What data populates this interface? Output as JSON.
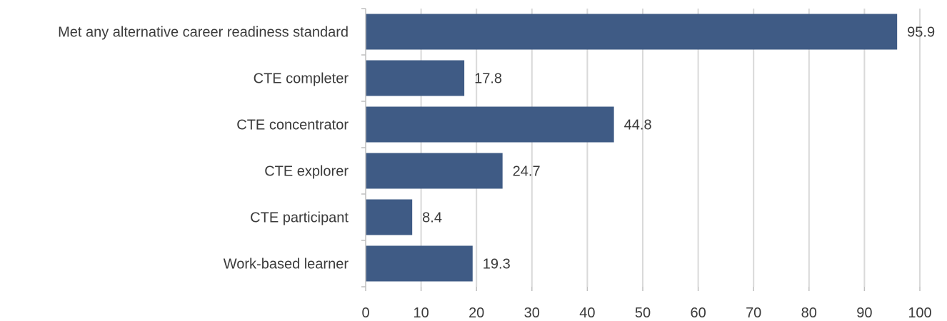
{
  "chart_data": {
    "type": "bar",
    "orientation": "horizontal",
    "categories": [
      "Met any alternative career readiness standard",
      "CTE completer",
      "CTE concentrator",
      "CTE explorer",
      "CTE participant",
      "Work-based learner"
    ],
    "values": [
      95.9,
      17.8,
      44.8,
      24.7,
      8.4,
      19.3
    ],
    "data_labels": [
      "95.9",
      "17.8",
      "44.8",
      "24.7",
      "8.4",
      "19.3"
    ],
    "xlim": [
      0,
      100
    ],
    "xticks": [
      0,
      10,
      20,
      30,
      40,
      50,
      60,
      70,
      80,
      90,
      100
    ],
    "title": "",
    "xlabel": "",
    "ylabel": "",
    "grid": true,
    "legend": "none",
    "bar_color": "#3f5b85"
  }
}
